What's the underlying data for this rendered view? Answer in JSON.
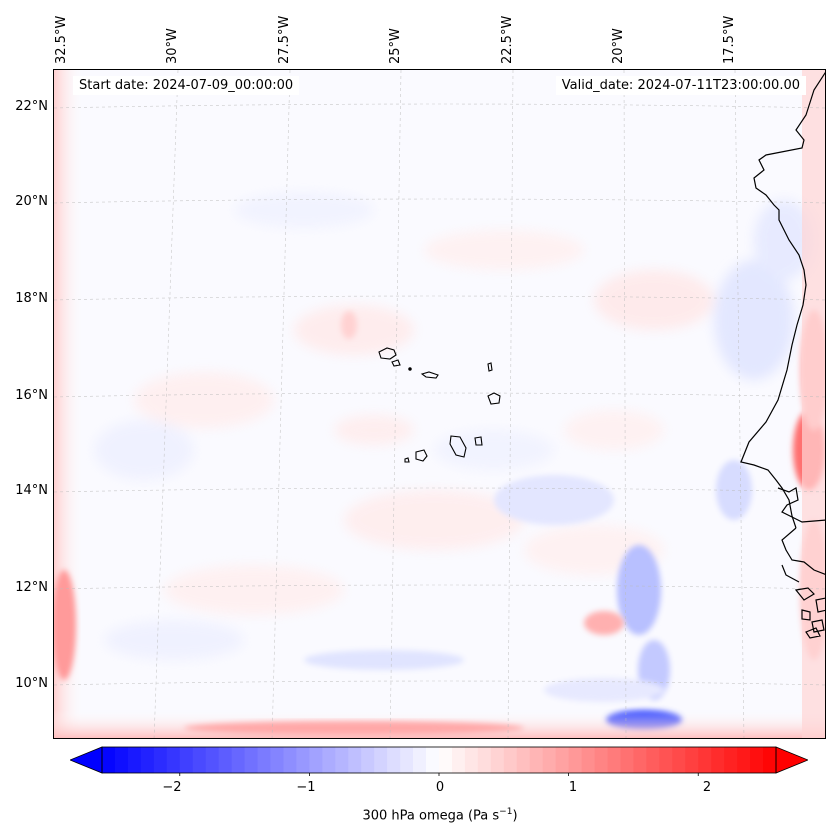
{
  "map": {
    "title_left": "Start date: 2024-07-09_00:00:00",
    "title_right": "Valid_date: 2024-07-11T23:00:00.00",
    "lon_labels": [
      "32.5°W",
      "30°W",
      "27.5°W",
      "25°W",
      "22.5°W",
      "20°W",
      "17.5°W"
    ],
    "lat_labels": [
      "22°N",
      "20°N",
      "18°N",
      "16°N",
      "14°N",
      "12°N",
      "10°N"
    ],
    "variable": "300 hPa omega",
    "field_note": "mostly near zero with weak positive/negative noise; strong positive along west and south boundaries and near the African coast at 15°N; negative streaks over 20°W, 9–13°N"
  },
  "colorbar": {
    "label_prefix": "300 hPa omega (Pa s",
    "label_exponent": "−1",
    "label_suffix": ")",
    "ticks": [
      "−2",
      "−1",
      "0",
      "1",
      "2"
    ],
    "range": [
      -2.6,
      2.6
    ],
    "colors": {
      "neg": "#0000ff",
      "zero": "#ffffff",
      "pos": "#ff0000"
    }
  }
}
